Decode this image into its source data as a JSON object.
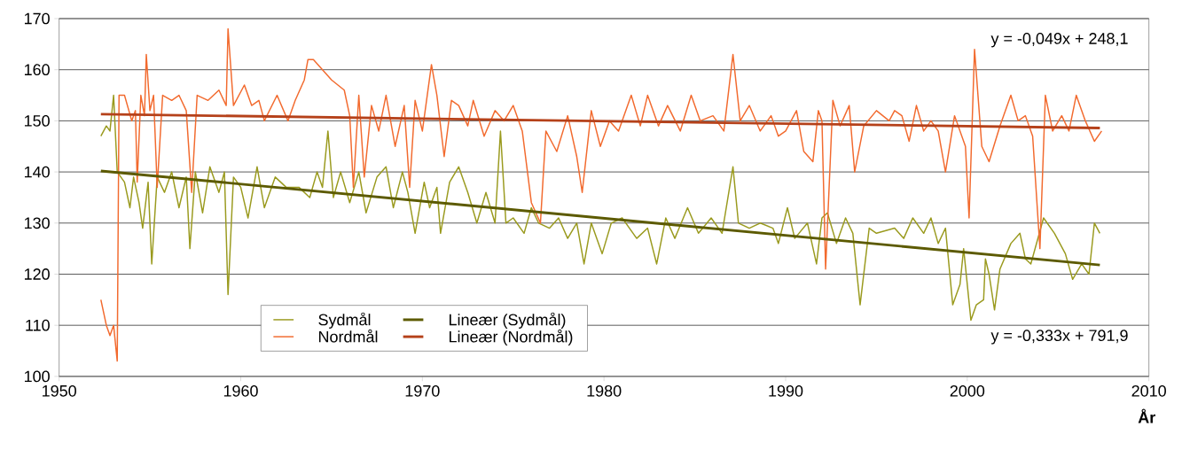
{
  "chart_data": {
    "type": "line",
    "xlabel": "År",
    "xlim": [
      1950,
      2010
    ],
    "xticks": [
      1950,
      1960,
      1970,
      1980,
      1990,
      2000,
      2010
    ],
    "ylim": [
      100,
      170
    ],
    "yticks": [
      100,
      110,
      120,
      130,
      140,
      150,
      160,
      170
    ],
    "grid": "y",
    "legend": "bottom left",
    "marker": "none",
    "line_style": "solid",
    "annotations": [
      "y = -0,049x + 248,1",
      "y = -0,333x + 791,9"
    ],
    "series": [
      {
        "name": "Sydmål",
        "color": "#9a9a1e",
        "x": [
          1952.3,
          1952.6,
          1952.8,
          1953.0,
          1953.2,
          1953.6,
          1953.9,
          1954.1,
          1954.4,
          1954.6,
          1954.9,
          1955.1,
          1955.4,
          1955.8,
          1956.2,
          1956.6,
          1957.0,
          1957.2,
          1957.5,
          1957.9,
          1958.3,
          1958.8,
          1959.1,
          1959.3,
          1959.6,
          1960.0,
          1960.4,
          1960.9,
          1961.3,
          1961.9,
          1962.5,
          1963.2,
          1963.8,
          1964.2,
          1964.5,
          1964.8,
          1965.1,
          1965.5,
          1966.0,
          1966.5,
          1966.9,
          1967.5,
          1968.0,
          1968.4,
          1968.9,
          1969.2,
          1969.6,
          1970.1,
          1970.4,
          1970.8,
          1971.0,
          1971.5,
          1972.0,
          1972.5,
          1973.0,
          1973.5,
          1974.0,
          1974.3,
          1974.6,
          1975.0,
          1975.6,
          1976.0,
          1976.4,
          1977.0,
          1977.5,
          1978.0,
          1978.5,
          1978.9,
          1979.3,
          1979.9,
          1980.4,
          1981.0,
          1981.8,
          1982.4,
          1982.9,
          1983.4,
          1983.9,
          1984.6,
          1985.2,
          1985.9,
          1986.5,
          1987.1,
          1987.4,
          1988.0,
          1988.6,
          1989.3,
          1989.6,
          1990.1,
          1990.5,
          1991.2,
          1991.7,
          1992.0,
          1992.3,
          1992.8,
          1993.3,
          1993.7,
          1994.1,
          1994.6,
          1995.0,
          1996.0,
          1996.5,
          1997.0,
          1997.6,
          1998.0,
          1998.4,
          1998.8,
          1999.2,
          1999.6,
          1999.8,
          2000.2,
          2000.5,
          2000.9,
          2001.0,
          2001.2,
          2001.5,
          2001.8,
          2002.4,
          2002.9,
          2003.2,
          2003.5,
          2004.2,
          2004.8,
          2005.4,
          2005.8,
          2006.3,
          2006.7,
          2007.0,
          2007.3
        ],
        "values": [
          147,
          149,
          148,
          155,
          140,
          138,
          133,
          139,
          134,
          129,
          138,
          122,
          139,
          136,
          140,
          133,
          139,
          125,
          140,
          132,
          141,
          136,
          140,
          116,
          139,
          137,
          131,
          141,
          133,
          139,
          137,
          137,
          135,
          140,
          137,
          148,
          135,
          140,
          134,
          140,
          132,
          139,
          141,
          133,
          140,
          136,
          128,
          138,
          133,
          137,
          128,
          138,
          141,
          136,
          130,
          136,
          130,
          148,
          130,
          131,
          128,
          133,
          130,
          129,
          131,
          127,
          130,
          122,
          130,
          124,
          130,
          131,
          127,
          129,
          122,
          131,
          127,
          133,
          128,
          131,
          128,
          141,
          130,
          129,
          130,
          129,
          126,
          133,
          127,
          130,
          122,
          131,
          132,
          126,
          131,
          128,
          114,
          129,
          128,
          129,
          127,
          131,
          128,
          131,
          126,
          129,
          114,
          118,
          125,
          111,
          114,
          115,
          123,
          120,
          113,
          121,
          126,
          128,
          123,
          122,
          131,
          128,
          124,
          119,
          122,
          120,
          130,
          128
        ]
      },
      {
        "name": "Nordmål",
        "color": "#f26a2e",
        "x": [
          1952.3,
          1952.6,
          1952.8,
          1953.0,
          1953.2,
          1953.3,
          1953.6,
          1954.0,
          1954.2,
          1954.3,
          1954.5,
          1954.7,
          1954.8,
          1955.0,
          1955.2,
          1955.4,
          1955.7,
          1956.2,
          1956.6,
          1957.0,
          1957.3,
          1957.6,
          1958.2,
          1958.8,
          1959.2,
          1959.3,
          1959.6,
          1960.2,
          1960.6,
          1961.0,
          1961.3,
          1962.0,
          1962.6,
          1963.0,
          1963.5,
          1963.7,
          1964.0,
          1965.0,
          1965.7,
          1966.0,
          1966.2,
          1966.5,
          1966.8,
          1967.2,
          1967.6,
          1968.0,
          1968.5,
          1969.0,
          1969.3,
          1969.6,
          1970.0,
          1970.5,
          1970.8,
          1971.2,
          1971.6,
          1972.0,
          1972.5,
          1972.8,
          1973.4,
          1974.0,
          1974.5,
          1975.0,
          1975.5,
          1976.0,
          1976.5,
          1976.8,
          1977.4,
          1978.0,
          1978.5,
          1978.8,
          1979.3,
          1979.8,
          1980.3,
          1980.8,
          1981.5,
          1982.0,
          1982.4,
          1983.0,
          1983.5,
          1984.2,
          1984.8,
          1985.3,
          1986.0,
          1986.6,
          1987.1,
          1987.5,
          1988.0,
          1988.6,
          1989.2,
          1989.6,
          1990.0,
          1990.6,
          1991.0,
          1991.5,
          1991.8,
          1992.0,
          1992.2,
          1992.6,
          1993.0,
          1993.5,
          1993.8,
          1994.3,
          1995.0,
          1995.7,
          1996.0,
          1996.4,
          1996.8,
          1997.2,
          1997.6,
          1998.0,
          1998.4,
          1998.8,
          1999.3,
          1999.9,
          2000.1,
          2000.4,
          2000.8,
          2001.2,
          2001.8,
          2002.4,
          2002.8,
          2003.2,
          2003.6,
          2004.0,
          2004.3,
          2004.7,
          2005.2,
          2005.6,
          2006.0,
          2006.5,
          2007.0,
          2007.4
        ],
        "values": [
          115,
          110,
          108,
          110,
          103,
          155,
          155,
          150,
          152,
          138,
          155,
          151,
          163,
          152,
          155,
          137,
          155,
          154,
          155,
          152,
          136,
          155,
          154,
          156,
          153,
          168,
          153,
          157,
          153,
          154,
          150,
          155,
          150,
          154,
          158,
          162,
          162,
          158,
          156,
          151,
          137,
          155,
          139,
          153,
          148,
          155,
          145,
          153,
          137,
          154,
          148,
          161,
          155,
          143,
          154,
          153,
          149,
          154,
          147,
          152,
          150,
          153,
          148,
          134,
          130,
          148,
          144,
          151,
          143,
          136,
          152,
          145,
          150,
          148,
          155,
          149,
          155,
          149,
          153,
          148,
          155,
          150,
          151,
          148,
          163,
          150,
          153,
          148,
          151,
          147,
          148,
          152,
          144,
          142,
          152,
          150,
          121,
          154,
          149,
          153,
          140,
          149,
          152,
          150,
          152,
          151,
          146,
          153,
          148,
          150,
          148,
          140,
          151,
          145,
          131,
          164,
          145,
          142,
          149,
          155,
          150,
          151,
          147,
          125,
          155,
          148,
          151,
          148,
          155,
          150,
          146,
          148
        ]
      },
      {
        "name": "Lineær (Sydmål)",
        "color": "#5c5a00",
        "x": [
          1952.3,
          2007.3
        ],
        "values": [
          140.2,
          121.8
        ]
      },
      {
        "name": "Lineær (Nordmål)",
        "color": "#b5411a",
        "x": [
          1952.3,
          2007.3
        ],
        "values": [
          151.3,
          148.6
        ]
      }
    ]
  }
}
